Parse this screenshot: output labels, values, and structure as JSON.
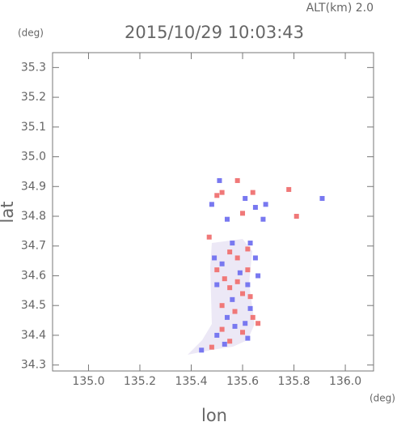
{
  "chart_data": {
    "type": "scatter",
    "title": "2015/10/29 10:03:43",
    "annotation": "ALT(km) 2.0",
    "y_unit": "(deg)",
    "x_unit": "(deg)",
    "xlabel": "lon",
    "ylabel": "lat",
    "xlim": [
      134.86,
      136.11
    ],
    "ylim": [
      34.28,
      35.35
    ],
    "xticks": [
      {
        "value": 135.0,
        "label": "135.0"
      },
      135.2,
      135.4,
      135.6,
      135.8,
      {
        "value": 136.0,
        "label": "136.0"
      }
    ],
    "yticks": [
      34.3,
      34.4,
      34.5,
      34.6,
      34.7,
      34.8,
      34.9,
      {
        "value": 35.0,
        "label": "35.0"
      },
      35.1,
      35.2,
      35.3
    ],
    "series": [
      {
        "color": "#f07878",
        "x": [
          135.5,
          135.52,
          135.58,
          135.64,
          135.78,
          135.81,
          135.6,
          135.47,
          135.55,
          135.58,
          135.62,
          135.5,
          135.53,
          135.62,
          135.55,
          135.6,
          135.52,
          135.57,
          135.64,
          135.52,
          135.6,
          135.66,
          135.55,
          135.48,
          135.58,
          135.63
        ],
        "values": [
          34.87,
          34.88,
          34.92,
          34.88,
          34.89,
          34.8,
          34.81,
          34.73,
          34.68,
          34.66,
          34.69,
          34.62,
          34.59,
          34.62,
          34.56,
          34.54,
          34.5,
          34.48,
          34.46,
          34.42,
          34.41,
          34.44,
          34.38,
          34.36,
          34.58,
          34.53
        ]
      },
      {
        "color": "#7878f0",
        "x": [
          135.51,
          135.48,
          135.61,
          135.65,
          135.69,
          135.91,
          135.54,
          135.68,
          135.56,
          135.63,
          135.49,
          135.65,
          135.52,
          135.59,
          135.66,
          135.5,
          135.62,
          135.56,
          135.63,
          135.54,
          135.61,
          135.57,
          135.5,
          135.62,
          135.44,
          135.53
        ],
        "values": [
          34.92,
          34.84,
          34.86,
          34.83,
          34.84,
          34.86,
          34.79,
          34.79,
          34.71,
          34.71,
          34.66,
          34.66,
          34.64,
          34.61,
          34.6,
          34.57,
          34.57,
          34.52,
          34.49,
          34.46,
          34.44,
          34.43,
          34.4,
          34.39,
          34.35,
          34.37
        ]
      }
    ]
  }
}
